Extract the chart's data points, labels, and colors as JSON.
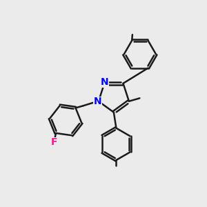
{
  "bg_color": "#ebebeb",
  "bond_color": "#1a1a1a",
  "N_color": "#0000ff",
  "F_color": "#ff1493",
  "bond_width": 1.8,
  "dbo_inner": 0.065,
  "dbo_benz": 0.055,
  "figsize": [
    3.0,
    3.0
  ],
  "dpi": 100,
  "xlim": [
    0,
    10
  ],
  "ylim": [
    0,
    10
  ]
}
